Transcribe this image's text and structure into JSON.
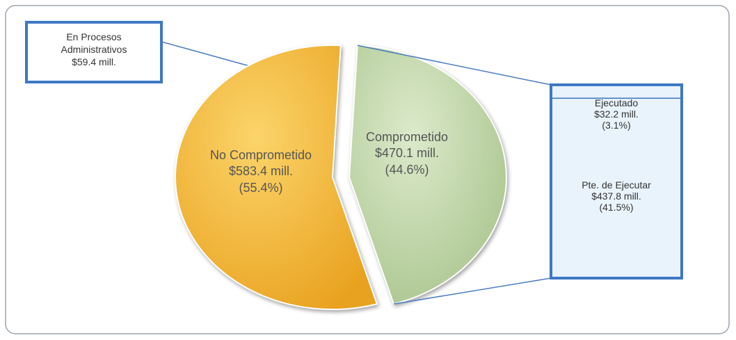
{
  "chart_data": {
    "type": "pie-of-bar",
    "categories": [
      "No Comprometido",
      "Comprometido"
    ],
    "values": [
      55.4,
      44.6
    ],
    "value_labels": [
      "(55.4%)",
      "(44.6%)"
    ],
    "amount_labels": [
      "$583.4 mill.",
      "$470.1 mill."
    ],
    "colors": [
      "#f4b43a",
      "#c8dbb0"
    ],
    "bar_categories": [
      "Ejecutado",
      "Pte. de Ejecutar"
    ],
    "bar_values": [
      3.1,
      41.5
    ],
    "bar_value_labels": [
      "(3.1%)",
      "(41.5%)"
    ],
    "bar_amount_labels": [
      "$32.2 mill.",
      "$437.8 mill."
    ],
    "bar_color": "#e9f3fb",
    "annotation": {
      "text": "En Procesos Administrativos",
      "amount_label": "$59.4 mill."
    }
  }
}
